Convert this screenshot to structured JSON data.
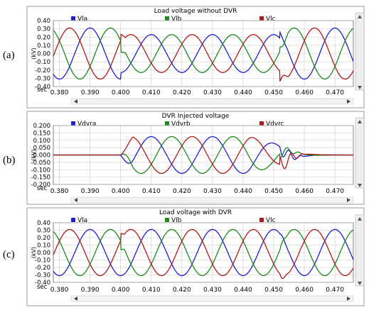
{
  "panel_labels": [
    "(a)",
    "(b)",
    "(c)"
  ],
  "colors": {
    "series_a": "#1f1fd0",
    "series_b": "#1a8a1a",
    "series_c": "#b01818",
    "grid": "#c8c8c8",
    "frame": "#808080",
    "bg": "#ffffff"
  },
  "x_unit_label": "sec",
  "chart_data": [
    {
      "type": "line",
      "title": "Load voltage without DVR",
      "ylabel": "(kV)",
      "xlim": [
        0.378,
        0.476
      ],
      "ylim": [
        -0.4,
        0.4
      ],
      "x_ticks": [
        0.38,
        0.39,
        0.4,
        0.41,
        0.42,
        0.43,
        0.44,
        0.45,
        0.46,
        0.47
      ],
      "x_tick_labels": [
        "0.380",
        "0.390",
        "0.400",
        "0.410",
        "0.420",
        "0.430",
        "0.440",
        "0.450",
        "0.460",
        "0.470"
      ],
      "y_ticks": [
        -0.4,
        -0.3,
        -0.2,
        -0.1,
        0,
        0.1,
        0.2,
        0.3,
        0.4
      ],
      "y_tick_labels": [
        "-0.40",
        "-0.30",
        "-0.20",
        "-0.10",
        "0.00",
        "0.10",
        "0.20",
        "0.30",
        "0.40"
      ],
      "grid": true,
      "legend_position": "top",
      "waveform": {
        "frequency_hz": 50,
        "nominal_amplitude": 0.31,
        "sag_start": 0.4,
        "sag_end": 0.452,
        "sag_amplitude": 0.23
      },
      "series": [
        {
          "name": "Vla",
          "phase_deg": -90
        },
        {
          "name": "Vlb",
          "phase_deg": -210
        },
        {
          "name": "Vlc",
          "phase_deg": 30
        }
      ]
    },
    {
      "type": "line",
      "title": "DVR Injected voltage",
      "ylabel": "(kV)",
      "xlim": [
        0.378,
        0.476
      ],
      "ylim": [
        -0.2,
        0.2
      ],
      "x_ticks": [
        0.38,
        0.39,
        0.4,
        0.41,
        0.42,
        0.43,
        0.44,
        0.45,
        0.46,
        0.47
      ],
      "x_tick_labels": [
        "0.380",
        "0.390",
        "0.400",
        "0.410",
        "0.420",
        "0.430",
        "0.440",
        "0.450",
        "0.460",
        "0.470"
      ],
      "y_ticks": [
        -0.2,
        -0.15,
        -0.1,
        -0.05,
        0,
        0.05,
        0.1,
        0.15,
        0.2
      ],
      "y_tick_labels": [
        "-0.200",
        "-0.150",
        "-0.100",
        "-0.050",
        "0.000",
        "0.050",
        "0.100",
        "0.150",
        "0.200"
      ],
      "grid": true,
      "legend_position": "top",
      "waveform": {
        "frequency_hz": 50,
        "injection_start": 0.4,
        "injection_peak": 0.125,
        "injection_end": 0.452
      },
      "series": [
        {
          "name": "Vdvra",
          "phase_deg": -90
        },
        {
          "name": "Vdvrb",
          "phase_deg": -210
        },
        {
          "name": "Vdvrc",
          "phase_deg": 30
        }
      ]
    },
    {
      "type": "line",
      "title": "Load voltage with DVR",
      "ylabel": "(kV)",
      "xlim": [
        0.378,
        0.476
      ],
      "ylim": [
        -0.4,
        0.4
      ],
      "x_ticks": [
        0.38,
        0.39,
        0.4,
        0.41,
        0.42,
        0.43,
        0.44,
        0.45,
        0.46,
        0.47
      ],
      "x_tick_labels": [
        "0.380",
        "0.390",
        "0.400",
        "0.410",
        "0.420",
        "0.430",
        "0.440",
        "0.450",
        "0.460",
        "0.470"
      ],
      "y_ticks": [
        -0.4,
        -0.3,
        -0.2,
        -0.1,
        0,
        0.1,
        0.2,
        0.3,
        0.4
      ],
      "y_tick_labels": [
        "-0.40",
        "-0.30",
        "-0.20",
        "-0.10",
        "0.00",
        "0.10",
        "0.20",
        "0.30",
        "0.40"
      ],
      "grid": true,
      "legend_position": "top",
      "waveform": {
        "frequency_hz": 50,
        "nominal_amplitude": 0.31
      },
      "series": [
        {
          "name": "Vla",
          "phase_deg": -90
        },
        {
          "name": "Vlb",
          "phase_deg": -210
        },
        {
          "name": "Vlc",
          "phase_deg": 30
        }
      ]
    }
  ]
}
